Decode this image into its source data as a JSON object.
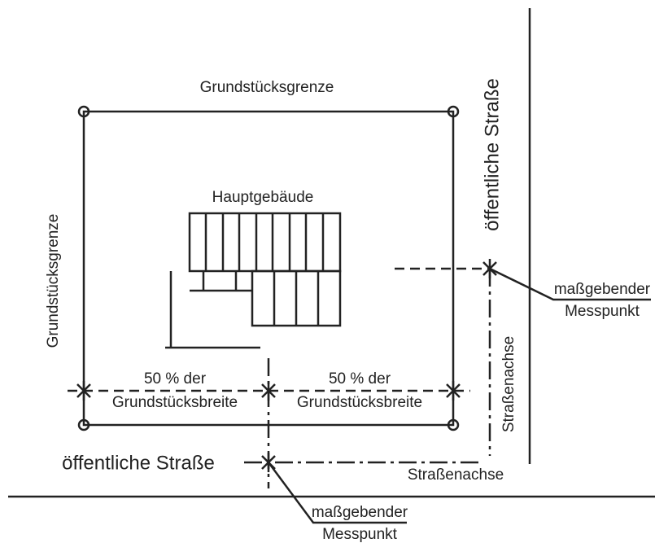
{
  "labels": {
    "plot_boundary_top": "Grundstücksgrenze",
    "plot_boundary_left": "Grundstücksgrenze",
    "main_building": "Hauptgebäude",
    "public_street_right": "öffentliche Straße",
    "public_street_bottom": "öffentliche Straße",
    "measuring_point_right": [
      "maßgebender",
      "Messpunkt"
    ],
    "measuring_point_bottom": [
      "maßgebender",
      "Messpunkt"
    ],
    "street_axis_right": "Straßenachse",
    "street_axis_bottom": "Straßenachse",
    "half_width_left": [
      "50 % der",
      "Grundstücksbreite"
    ],
    "half_width_right": [
      "50 % der",
      "Grundstücksbreite"
    ]
  }
}
